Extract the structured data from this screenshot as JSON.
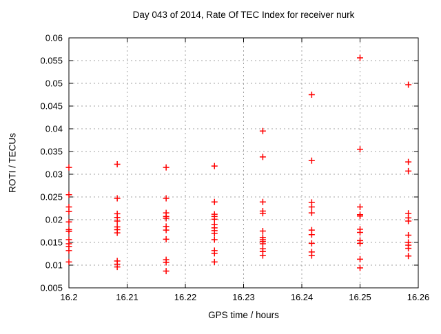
{
  "chart_data": {
    "type": "scatter",
    "title": "Day 043 of 2014, Rate Of TEC Index for receiver nurk",
    "xlabel": "GPS time / hours",
    "ylabel": "ROTI / TECUs",
    "xlim": [
      16.2,
      16.26
    ],
    "ylim": [
      0.005,
      0.06
    ],
    "xticks": {
      "values": [
        16.2,
        16.21,
        16.22,
        16.23,
        16.24,
        16.25,
        16.26
      ],
      "labels": [
        "16.2",
        "16.21",
        "16.22",
        "16.23",
        "16.24",
        "16.25",
        "16.26"
      ]
    },
    "yticks": {
      "values": [
        0.005,
        0.01,
        0.015,
        0.02,
        0.025,
        0.03,
        0.035,
        0.04,
        0.045,
        0.05,
        0.055,
        0.06
      ],
      "labels": [
        "0.005",
        "0.01",
        "0.015",
        "0.02",
        "0.025",
        "0.03",
        "0.035",
        "0.04",
        "0.045",
        "0.05",
        "0.055",
        "0.06"
      ]
    },
    "grid": true,
    "legend": "none",
    "marker": "plus",
    "colors": {
      "points": "#ff0000",
      "grid": "#a0a0a0",
      "border": "#000000",
      "background": "#ffffff",
      "text": "#000000"
    },
    "series": [
      {
        "name": "ROTI",
        "columns": [
          {
            "x": 16.2,
            "values": [
              0.0315,
              0.0255,
              0.0228,
              0.0218,
              0.0195,
              0.0178,
              0.0174,
              0.0156,
              0.0147,
              0.0141,
              0.0132,
              0.0107
            ]
          },
          {
            "x": 16.2083,
            "values": [
              0.0322,
              0.0247,
              0.0213,
              0.0205,
              0.0197,
              0.0184,
              0.0178,
              0.0171,
              0.0109,
              0.0102,
              0.0096
            ]
          },
          {
            "x": 16.2167,
            "values": [
              0.0315,
              0.0247,
              0.0215,
              0.0207,
              0.0203,
              0.0185,
              0.0177,
              0.0157,
              0.0112,
              0.0106,
              0.0087
            ]
          },
          {
            "x": 16.225,
            "values": [
              0.0318,
              0.0239,
              0.0212,
              0.0207,
              0.0201,
              0.0189,
              0.0182,
              0.0176,
              0.017,
              0.0156,
              0.0132,
              0.0126,
              0.0107
            ]
          },
          {
            "x": 16.2333,
            "values": [
              0.0395,
              0.0338,
              0.0239,
              0.0219,
              0.0214,
              0.0175,
              0.0161,
              0.0156,
              0.0152,
              0.0147,
              0.0136,
              0.013,
              0.0121
            ]
          },
          {
            "x": 16.2417,
            "values": [
              0.0475,
              0.033,
              0.0238,
              0.0228,
              0.0215,
              0.0177,
              0.0167,
              0.0148,
              0.0129,
              0.0121
            ]
          },
          {
            "x": 16.25,
            "values": [
              0.0556,
              0.0355,
              0.0228,
              0.0211,
              0.0208,
              0.0179,
              0.0172,
              0.0154,
              0.0148,
              0.0113,
              0.0094
            ]
          },
          {
            "x": 16.2583,
            "values": [
              0.0497,
              0.0327,
              0.0307,
              0.0214,
              0.0204,
              0.0197,
              0.0166,
              0.015,
              0.0144,
              0.0137,
              0.012
            ]
          }
        ]
      }
    ]
  }
}
